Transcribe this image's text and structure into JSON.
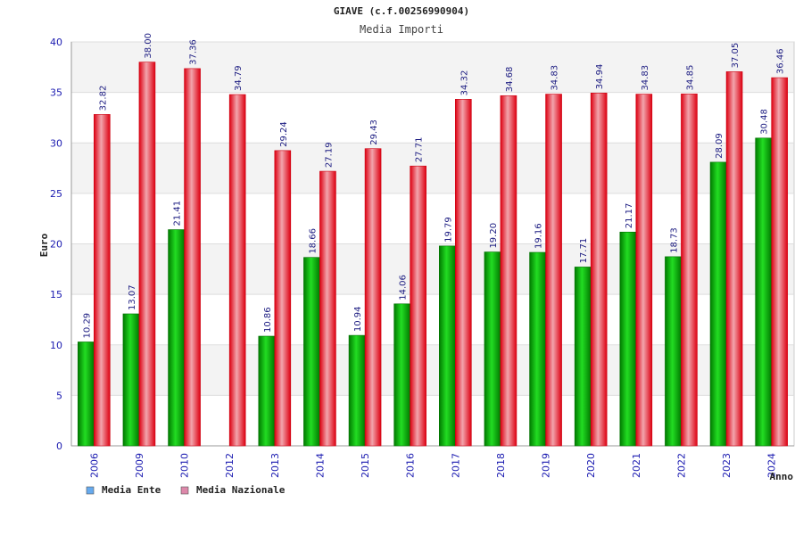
{
  "chart_data": {
    "type": "bar",
    "title": "GIAVE (c.f.00256990904)",
    "subtitle": "Media Importi",
    "ylabel": "Euro",
    "xlabel": "Anno",
    "ylim": [
      0,
      40
    ],
    "yticks": [
      0,
      5,
      10,
      15,
      20,
      25,
      30,
      35,
      40
    ],
    "grid": true,
    "legend_position": "bottom-left",
    "categories": [
      "2006",
      "2009",
      "2010",
      "2012",
      "2013",
      "2014",
      "2015",
      "2016",
      "2017",
      "2018",
      "2019",
      "2020",
      "2021",
      "2022",
      "2023",
      "2024"
    ],
    "series": [
      {
        "name": "Media Ente",
        "color": "#00aa00",
        "legend_color": "#66aaee",
        "values": [
          10.29,
          13.07,
          21.41,
          null,
          10.86,
          18.66,
          10.94,
          14.06,
          19.79,
          19.2,
          19.16,
          17.71,
          21.17,
          18.73,
          28.09,
          30.48
        ],
        "labels": [
          "10.29",
          "13.07",
          "21.41",
          "",
          "10.86",
          "18.66",
          "10.94",
          "14.06",
          "19.79",
          "19.20",
          "19.16",
          "17.71",
          "21.17",
          "18.73",
          "28.09",
          "30.48"
        ]
      },
      {
        "name": "Media Nazionale",
        "color": "#ee1122",
        "legend_color": "#dd88aa",
        "values": [
          32.82,
          38.0,
          37.36,
          34.79,
          29.24,
          27.19,
          29.43,
          27.71,
          34.32,
          34.68,
          34.83,
          34.94,
          34.83,
          34.85,
          37.05,
          36.46
        ],
        "labels": [
          "32.82",
          "38.00",
          "37.36",
          "34.79",
          "29.24",
          "27.19",
          "29.43",
          "27.71",
          "34.32",
          "34.68",
          "34.83",
          "34.94",
          "34.83",
          "34.85",
          "37.05",
          "36.46"
        ]
      }
    ]
  }
}
